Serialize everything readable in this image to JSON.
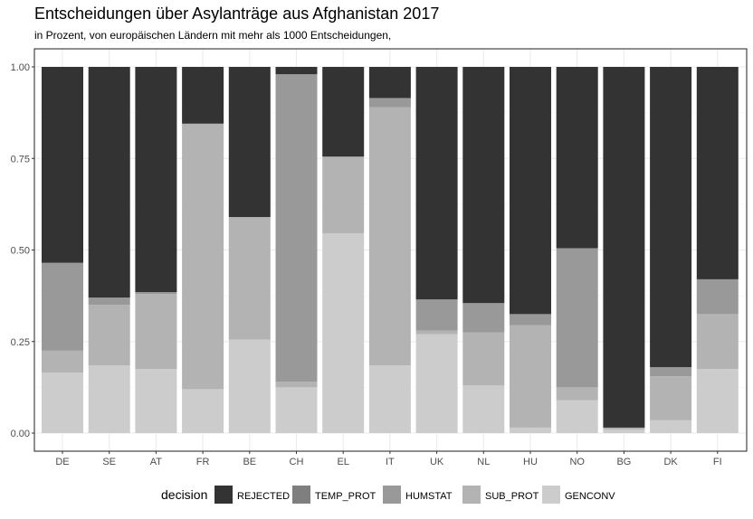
{
  "chart_data": {
    "type": "bar",
    "stacked": true,
    "title": "Entscheidungen über Asylanträge aus Afghanistan 2017",
    "subtitle": "in Prozent, von europäischen Ländern mit mehr als 1000 Entscheidungen,",
    "xlabel": "",
    "ylabel": "",
    "ylim": [
      0,
      1
    ],
    "yticks": [
      "0.00",
      "0.25",
      "0.50",
      "0.75",
      "1.00"
    ],
    "grid": true,
    "legend_position": "bottom",
    "legend_title": "decision",
    "categories": [
      "DE",
      "SE",
      "AT",
      "FR",
      "BE",
      "CH",
      "EL",
      "IT",
      "UK",
      "NL",
      "HU",
      "NO",
      "BG",
      "DK",
      "FI"
    ],
    "series": [
      {
        "name": "GENCONV",
        "color": "#cccccc",
        "values": [
          0.165,
          0.185,
          0.175,
          0.12,
          0.255,
          0.125,
          0.545,
          0.185,
          0.27,
          0.13,
          0.015,
          0.09,
          0.01,
          0.035,
          0.175
        ]
      },
      {
        "name": "SUB_PROT",
        "color": "#b3b3b3",
        "values": [
          0.06,
          0.165,
          0.205,
          0.725,
          0.335,
          0.015,
          0.21,
          0.705,
          0.01,
          0.145,
          0.28,
          0.035,
          0.005,
          0.12,
          0.15
        ]
      },
      {
        "name": "HUMSTAT",
        "color": "#999999",
        "values": [
          0.24,
          0.02,
          0.005,
          0.0,
          0.0,
          0.84,
          0.0,
          0.025,
          0.085,
          0.08,
          0.03,
          0.38,
          0.0,
          0.025,
          0.095
        ]
      },
      {
        "name": "TEMP_PROT",
        "color": "#7f7f7f",
        "values": [
          0,
          0,
          0,
          0,
          0,
          0,
          0,
          0,
          0,
          0,
          0,
          0,
          0,
          0,
          0
        ]
      },
      {
        "name": "REJECTED",
        "color": "#333333",
        "values": [
          0.535,
          0.63,
          0.615,
          0.155,
          0.41,
          0.02,
          0.245,
          0.085,
          0.635,
          0.645,
          0.675,
          0.495,
          0.985,
          0.82,
          0.58
        ]
      }
    ],
    "legend_order": [
      "REJECTED",
      "TEMP_PROT",
      "HUMSTAT",
      "SUB_PROT",
      "GENCONV"
    ]
  }
}
